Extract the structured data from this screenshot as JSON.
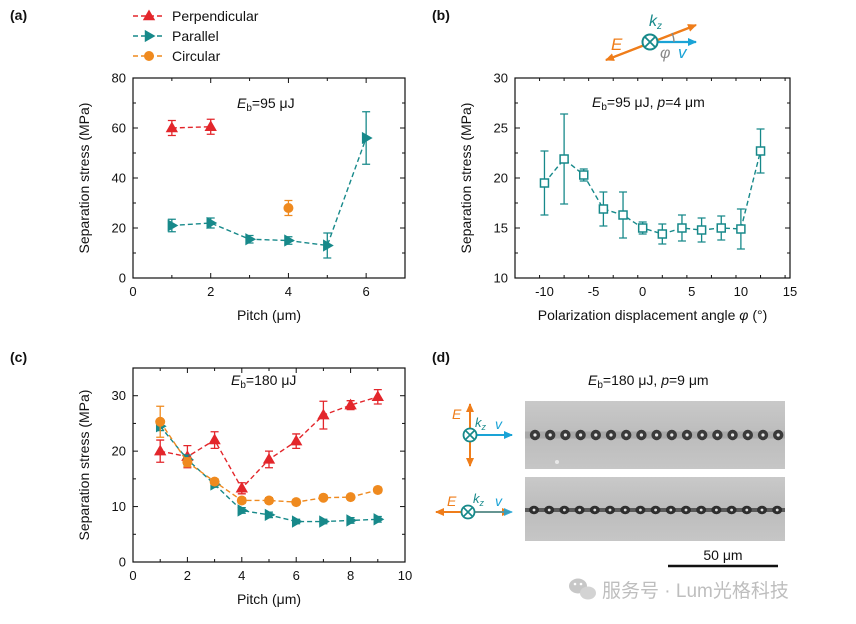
{
  "colors": {
    "perpendicular": "#e3262b",
    "parallel": "#17898a",
    "circular": "#ef8a1f",
    "axis": "#111111",
    "E_arrow": "#ef7d1a",
    "v_arrow": "#1aa3d6",
    "k_symbol": "#17898a",
    "phi": "#888888"
  },
  "legend": {
    "items": [
      {
        "name": "Perpendicular",
        "marker": "triangle-up",
        "color_key": "perpendicular"
      },
      {
        "name": "Parallel",
        "marker": "triangle-right",
        "color_key": "parallel"
      },
      {
        "name": "Circular",
        "marker": "circle",
        "color_key": "circular"
      }
    ]
  },
  "panel_labels": {
    "a": "(a)",
    "b": "(b)",
    "c": "(c)",
    "d": "(d)"
  },
  "annotations": {
    "a": {
      "E": "E",
      "sub": "b",
      "rest": "=95 μJ"
    },
    "b": {
      "E": "E",
      "sub": "b",
      "rest1": "=95 μJ, ",
      "p": "p",
      "rest2": "=4 μm"
    },
    "c": {
      "E": "E",
      "sub": "b",
      "rest": "=180 μJ"
    },
    "d": {
      "E": "E",
      "sub": "b",
      "rest1": "=180 μJ, ",
      "p": "p",
      "rest2": "=9 μm"
    }
  },
  "schematic_b": {
    "E": "E",
    "k": "k",
    "k_sub": "z",
    "phi": "φ",
    "v": "v"
  },
  "schematic_d_top": {
    "E": "E",
    "k": "k",
    "k_sub": "z",
    "v": "v"
  },
  "schematic_d_bottom": {
    "E": "E",
    "k": "k",
    "k_sub": "z",
    "v": "v"
  },
  "scalebar": {
    "label": "50 μm"
  },
  "watermark": {
    "text": "服务号 · Lum光格科技",
    "icon": "wechat-icon"
  },
  "chart_data": [
    {
      "id": "a",
      "type": "scatter",
      "xlabel": "Pitch (μm)",
      "ylabel": "Separation stress (MPa)",
      "xlim": [
        0,
        7
      ],
      "ylim": [
        0,
        80
      ],
      "xticks": [
        0,
        2,
        4,
        6
      ],
      "yticks": [
        0,
        20,
        40,
        60,
        80
      ],
      "series": [
        {
          "name": "Perpendicular",
          "marker": "triangle-up",
          "color_key": "perpendicular",
          "line": true,
          "x": [
            1,
            2
          ],
          "y": [
            60,
            60.5
          ],
          "err": [
            3,
            3
          ]
        },
        {
          "name": "Parallel",
          "marker": "triangle-right",
          "color_key": "parallel",
          "line": true,
          "x": [
            1,
            2,
            3,
            4,
            5,
            6
          ],
          "y": [
            21,
            22,
            15.5,
            15,
            13,
            56
          ],
          "err": [
            2.5,
            2,
            1.5,
            1.5,
            5,
            10.5
          ]
        },
        {
          "name": "Circular",
          "marker": "circle",
          "color_key": "circular",
          "line": false,
          "x": [
            4
          ],
          "y": [
            28
          ],
          "err": [
            3
          ]
        }
      ]
    },
    {
      "id": "b",
      "type": "scatter",
      "xlabel": "Polarization displacement angle",
      "xlabel_symbol": "φ",
      "xlabel_unit": " (°)",
      "ylabel": "Separation stress (MPa)",
      "xlim": [
        -13,
        15
      ],
      "ylim": [
        10,
        30
      ],
      "xticks": [
        -10,
        -5,
        0,
        5,
        10,
        15
      ],
      "yticks": [
        10,
        15,
        20,
        25,
        30
      ],
      "series": [
        {
          "marker": "square-open",
          "color_key": "parallel",
          "line": true,
          "x": [
            -10,
            -8,
            -6,
            -4,
            -2,
            0,
            2,
            4,
            6,
            8,
            10,
            12
          ],
          "y": [
            19.5,
            21.9,
            20.3,
            16.9,
            16.3,
            15.0,
            14.4,
            15.0,
            14.8,
            15.0,
            14.9,
            22.7
          ],
          "err": [
            3.2,
            4.5,
            0.6,
            1.7,
            2.3,
            0.6,
            1.0,
            1.3,
            1.2,
            1.2,
            2.0,
            2.2
          ]
        }
      ]
    },
    {
      "id": "c",
      "type": "scatter",
      "xlabel": "Pitch (μm)",
      "ylabel": "Separation stress (MPa)",
      "xlim": [
        0,
        10
      ],
      "ylim": [
        0,
        35
      ],
      "xticks": [
        0,
        2,
        4,
        6,
        8,
        10
      ],
      "yticks": [
        0,
        10,
        20,
        30
      ],
      "series": [
        {
          "name": "Perpendicular",
          "marker": "triangle-up",
          "color_key": "perpendicular",
          "line": true,
          "x": [
            1,
            2,
            3,
            4,
            5,
            6,
            7,
            8,
            9
          ],
          "y": [
            20.0,
            19.0,
            22.0,
            13.3,
            18.5,
            21.8,
            26.5,
            28.3,
            29.8
          ],
          "err": [
            2.0,
            2.0,
            1.5,
            1.0,
            1.5,
            1.3,
            2.5,
            0.8,
            1.3
          ]
        },
        {
          "name": "Parallel",
          "marker": "triangle-right",
          "color_key": "parallel",
          "line": true,
          "x": [
            1,
            2,
            3,
            4,
            5,
            6,
            7,
            8,
            9
          ],
          "y": [
            24.5,
            18.5,
            14.0,
            9.3,
            8.5,
            7.3,
            7.3,
            7.5,
            7.7
          ],
          "err": [
            0.8,
            0.8,
            0.5,
            0.5,
            0.5,
            0.4,
            0.4,
            0.5,
            0.5
          ]
        },
        {
          "name": "Circular",
          "marker": "circle",
          "color_key": "circular",
          "line": true,
          "x": [
            1,
            2,
            3,
            4,
            5,
            6,
            7,
            8,
            9
          ],
          "y": [
            25.3,
            18.0,
            14.5,
            11.1,
            11.1,
            10.8,
            11.6,
            11.7,
            13.0
          ],
          "err": [
            2.8,
            0.8,
            0.5,
            0.5,
            0.5,
            0.4,
            0.4,
            0.4,
            0.5
          ]
        }
      ]
    }
  ]
}
